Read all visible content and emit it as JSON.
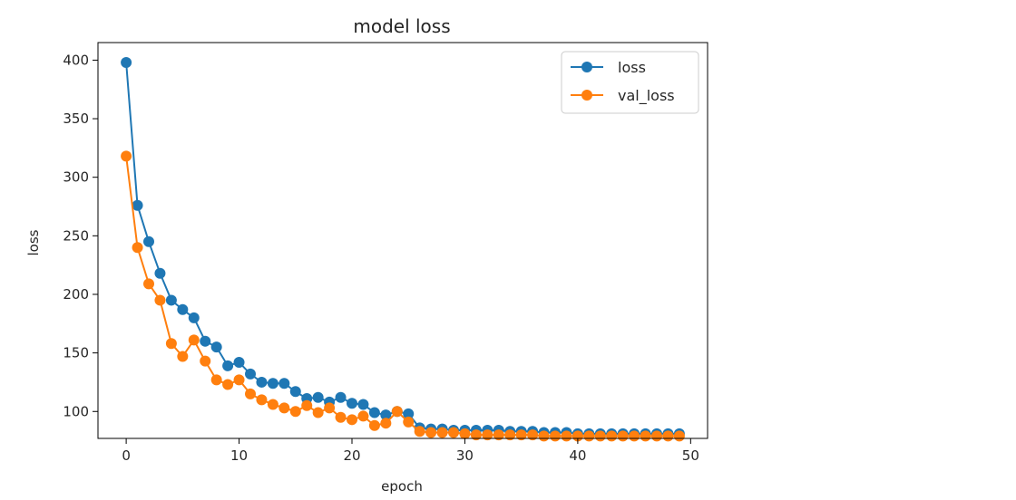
{
  "chart_data": {
    "type": "line",
    "title": "model loss",
    "xlabel": "epoch",
    "ylabel": "loss",
    "xlim": [
      -2.5,
      51.5
    ],
    "ylim": [
      77,
      415
    ],
    "xticks": [
      0,
      10,
      20,
      30,
      40,
      50
    ],
    "yticks": [
      100,
      150,
      200,
      250,
      300,
      350,
      400
    ],
    "grid": false,
    "legend_position": "top-right",
    "x": [
      0,
      1,
      2,
      3,
      4,
      5,
      6,
      7,
      8,
      9,
      10,
      11,
      12,
      13,
      14,
      15,
      16,
      17,
      18,
      19,
      20,
      21,
      22,
      23,
      24,
      25,
      26,
      27,
      28,
      29,
      30,
      31,
      32,
      33,
      34,
      35,
      36,
      37,
      38,
      39,
      40,
      41,
      42,
      43,
      44,
      45,
      46,
      47,
      48,
      49
    ],
    "series": [
      {
        "name": "loss",
        "color": "#1f77b4",
        "values": [
          398,
          276,
          245,
          218,
          195,
          187,
          180,
          160,
          155,
          139,
          142,
          132,
          125,
          124,
          124,
          117,
          111,
          112,
          108,
          112,
          107,
          106,
          99,
          97,
          100,
          98,
          86,
          85,
          85,
          84,
          84,
          84,
          84,
          84,
          83,
          83,
          83,
          82,
          82,
          82,
          81,
          81,
          81,
          81,
          81,
          81,
          81,
          81,
          81,
          81
        ]
      },
      {
        "name": "val_loss",
        "color": "#ff7f0e",
        "values": [
          318,
          240,
          209,
          195,
          158,
          147,
          161,
          143,
          127,
          123,
          127,
          115,
          110,
          106,
          103,
          100,
          105,
          99,
          103,
          95,
          93,
          96,
          88,
          90,
          100,
          91,
          83,
          82,
          82,
          82,
          81,
          80,
          80,
          80,
          80,
          80,
          80,
          79,
          79,
          79,
          79,
          79,
          79,
          79,
          79,
          79,
          79,
          79,
          79,
          79
        ]
      }
    ]
  }
}
